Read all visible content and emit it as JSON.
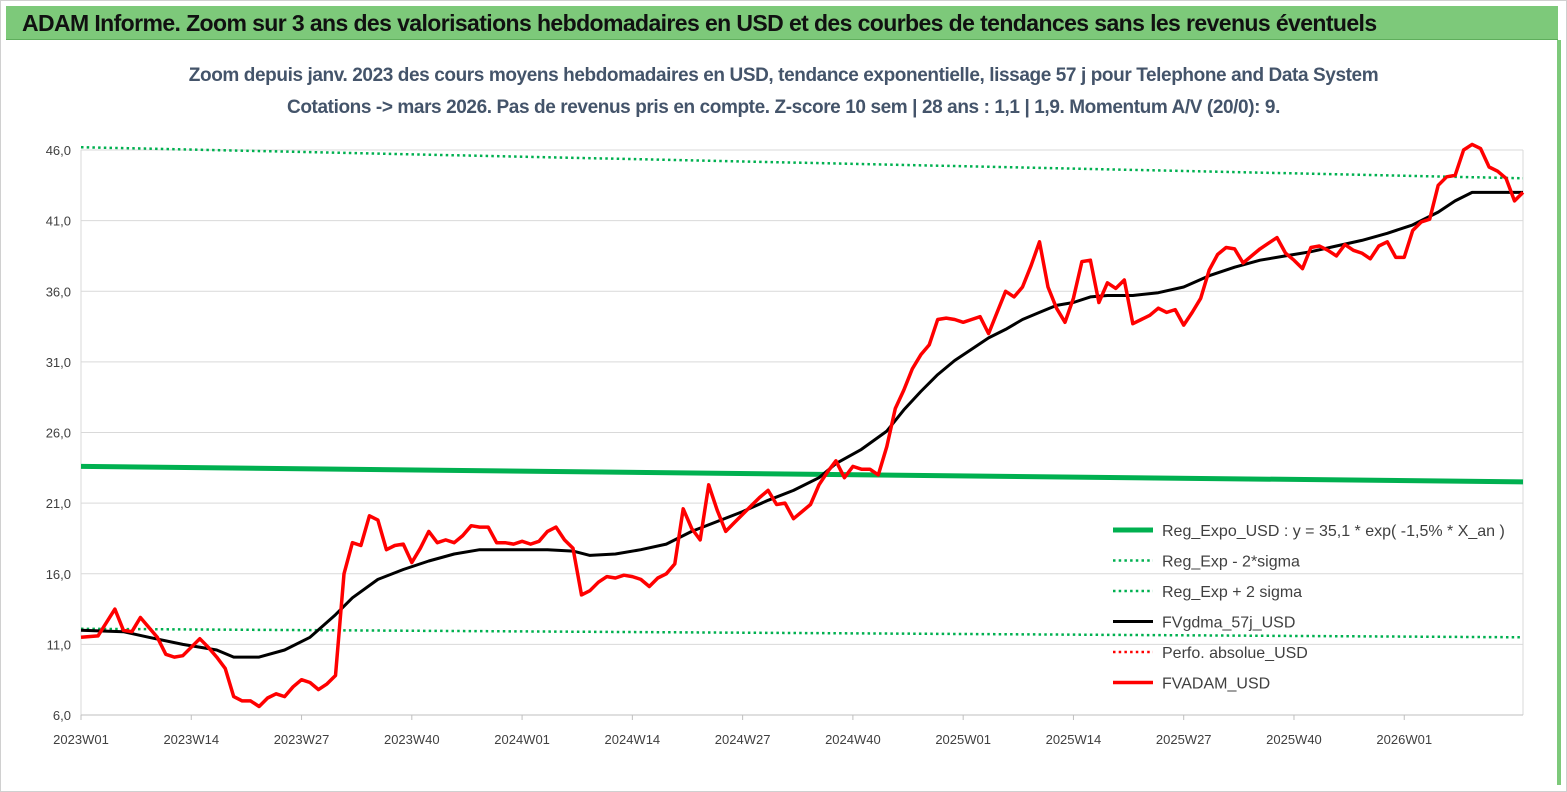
{
  "banner": {
    "title": "ADAM Informe. Zoom sur 3 ans des valorisations hebdomadaires en USD et des courbes de tendances sans les revenus éventuels",
    "background": "#7dc97a"
  },
  "chart_data": {
    "type": "line",
    "title": "Zoom depuis janv. 2023 des cours moyens hebdomadaires en USD, tendance exponentielle, lissage 57 j pour Telephone and Data System",
    "subtitle": "Cotations -> mars 2026. Pas de revenus pris en compte. Z-score 10 sem | 28 ans : 1,1 | 1,9. Momentum A/V (20/0): 9.",
    "xlabel": "",
    "ylabel": "",
    "x_ticks": [
      "2023W01",
      "2023W14",
      "2023W27",
      "2023W40",
      "2024W01",
      "2024W14",
      "2024W27",
      "2024W40",
      "2025W01",
      "2025W14",
      "2025W27",
      "2025W40",
      "2026W01"
    ],
    "x_range_weeks": [
      0,
      170
    ],
    "y_ticks": [
      "6,0",
      "11,0",
      "16,0",
      "21,0",
      "26,0",
      "31,0",
      "36,0",
      "41,0",
      "46,0"
    ],
    "ylim": [
      6,
      46
    ],
    "grid": "horizontal",
    "legend_position": "bottom-right",
    "series": [
      {
        "name": "Reg_Expo_USD : y = 35,1 * exp( -1,5% *  X_an )",
        "color": "#00b050",
        "style": "solid-thick",
        "points": [
          [
            0,
            23.6
          ],
          [
            170,
            22.5
          ]
        ]
      },
      {
        "name": "Reg_Exp - 2*sigma",
        "color": "#00b050",
        "style": "dotted",
        "points": [
          [
            0,
            12.1
          ],
          [
            170,
            11.5
          ]
        ]
      },
      {
        "name": "Reg_Exp + 2 sigma",
        "color": "#00b050",
        "style": "dotted",
        "points": [
          [
            0,
            46.2
          ],
          [
            170,
            44.0
          ]
        ]
      },
      {
        "name": "FVgdma_57j_USD",
        "color": "#000000",
        "style": "solid",
        "points": [
          [
            0,
            12
          ],
          [
            5,
            11.9
          ],
          [
            8,
            11.5
          ],
          [
            12,
            11
          ],
          [
            16,
            10.6
          ],
          [
            18,
            10.1
          ],
          [
            21,
            10.1
          ],
          [
            24,
            10.6
          ],
          [
            27,
            11.5
          ],
          [
            30,
            13.1
          ],
          [
            32,
            14.3
          ],
          [
            35,
            15.6
          ],
          [
            38,
            16.3
          ],
          [
            41,
            16.9
          ],
          [
            44,
            17.4
          ],
          [
            47,
            17.7
          ],
          [
            50,
            17.7
          ],
          [
            55,
            17.7
          ],
          [
            58,
            17.6
          ],
          [
            60,
            17.3
          ],
          [
            63,
            17.4
          ],
          [
            66,
            17.7
          ],
          [
            69,
            18.1
          ],
          [
            72,
            19
          ],
          [
            75,
            19.7
          ],
          [
            78,
            20.4
          ],
          [
            81,
            21.2
          ],
          [
            84,
            21.9
          ],
          [
            87,
            22.8
          ],
          [
            89,
            23.8
          ],
          [
            92,
            24.8
          ],
          [
            95,
            26.1
          ],
          [
            97,
            27.6
          ],
          [
            99,
            28.9
          ],
          [
            101,
            30.1
          ],
          [
            103,
            31.1
          ],
          [
            105,
            31.9
          ],
          [
            107,
            32.7
          ],
          [
            109,
            33.3
          ],
          [
            111,
            34
          ],
          [
            113,
            34.5
          ],
          [
            115,
            35
          ],
          [
            117,
            35.2
          ],
          [
            119,
            35.6
          ],
          [
            121,
            35.7
          ],
          [
            124,
            35.7
          ],
          [
            127,
            35.9
          ],
          [
            130,
            36.3
          ],
          [
            133,
            37.1
          ],
          [
            136,
            37.7
          ],
          [
            139,
            38.2
          ],
          [
            142,
            38.5
          ],
          [
            145,
            38.8
          ],
          [
            148,
            39.2
          ],
          [
            151,
            39.6
          ],
          [
            154,
            40.1
          ],
          [
            157,
            40.7
          ],
          [
            160,
            41.6
          ],
          [
            162,
            42.4
          ],
          [
            164,
            43
          ],
          [
            166,
            43
          ],
          [
            168,
            43
          ],
          [
            170,
            43
          ]
        ]
      },
      {
        "name": "Perfo. absolue_USD",
        "color": "#ff0000",
        "style": "dotted",
        "points": []
      },
      {
        "name": "FVADAM_USD",
        "color": "#ff0000",
        "style": "solid-thick",
        "points": [
          [
            0,
            11.5
          ],
          [
            2,
            11.6
          ],
          [
            4,
            13.5
          ],
          [
            5,
            12
          ],
          [
            6,
            11.9
          ],
          [
            7,
            12.9
          ],
          [
            9,
            11.5
          ],
          [
            10,
            10.3
          ],
          [
            11,
            10.1
          ],
          [
            12,
            10.2
          ],
          [
            13,
            10.8
          ],
          [
            14,
            11.4
          ],
          [
            15,
            10.8
          ],
          [
            16,
            10.1
          ],
          [
            17,
            9.3
          ],
          [
            18,
            7.3
          ],
          [
            19,
            7
          ],
          [
            20,
            7
          ],
          [
            21,
            6.6
          ],
          [
            22,
            7.2
          ],
          [
            23,
            7.5
          ],
          [
            24,
            7.3
          ],
          [
            25,
            8
          ],
          [
            26,
            8.5
          ],
          [
            27,
            8.3
          ],
          [
            28,
            7.8
          ],
          [
            29,
            8.2
          ],
          [
            30,
            8.8
          ],
          [
            31,
            16
          ],
          [
            32,
            18.2
          ],
          [
            33,
            18
          ],
          [
            34,
            20.1
          ],
          [
            35,
            19.8
          ],
          [
            36,
            17.7
          ],
          [
            37,
            18
          ],
          [
            38,
            18.1
          ],
          [
            39,
            16.8
          ],
          [
            40,
            17.8
          ],
          [
            41,
            19
          ],
          [
            42,
            18.2
          ],
          [
            43,
            18.4
          ],
          [
            44,
            18.2
          ],
          [
            45,
            18.7
          ],
          [
            46,
            19.4
          ],
          [
            47,
            19.3
          ],
          [
            48,
            19.3
          ],
          [
            49,
            18.2
          ],
          [
            50,
            18.2
          ],
          [
            51,
            18.1
          ],
          [
            52,
            18.3
          ],
          [
            53,
            18.1
          ],
          [
            54,
            18.3
          ],
          [
            55,
            19
          ],
          [
            56,
            19.3
          ],
          [
            57,
            18.4
          ],
          [
            58,
            17.8
          ],
          [
            59,
            14.5
          ],
          [
            60,
            14.8
          ],
          [
            61,
            15.4
          ],
          [
            62,
            15.8
          ],
          [
            63,
            15.7
          ],
          [
            64,
            15.9
          ],
          [
            65,
            15.8
          ],
          [
            66,
            15.6
          ],
          [
            67,
            15.1
          ],
          [
            68,
            15.7
          ],
          [
            69,
            16
          ],
          [
            70,
            16.7
          ],
          [
            71,
            20.6
          ],
          [
            72,
            19.2
          ],
          [
            73,
            18.4
          ],
          [
            74,
            22.3
          ],
          [
            75,
            20.5
          ],
          [
            76,
            19
          ],
          [
            77,
            19.6
          ],
          [
            78,
            20.2
          ],
          [
            79,
            20.8
          ],
          [
            80,
            21.4
          ],
          [
            81,
            21.9
          ],
          [
            82,
            20.9
          ],
          [
            83,
            21
          ],
          [
            84,
            19.9
          ],
          [
            85,
            20.4
          ],
          [
            86,
            20.9
          ],
          [
            87,
            22.3
          ],
          [
            88,
            23.2
          ],
          [
            89,
            24
          ],
          [
            90,
            22.8
          ],
          [
            91,
            23.6
          ],
          [
            92,
            23.4
          ],
          [
            93,
            23.4
          ],
          [
            94,
            23
          ],
          [
            95,
            25
          ],
          [
            96,
            27.7
          ],
          [
            97,
            29
          ],
          [
            98,
            30.5
          ],
          [
            99,
            31.5
          ],
          [
            100,
            32.2
          ],
          [
            101,
            34
          ],
          [
            102,
            34.1
          ],
          [
            103,
            34
          ],
          [
            104,
            33.8
          ],
          [
            105,
            34
          ],
          [
            106,
            34.2
          ],
          [
            107,
            33
          ],
          [
            108,
            34.5
          ],
          [
            109,
            36
          ],
          [
            110,
            35.6
          ],
          [
            111,
            36.3
          ],
          [
            112,
            37.8
          ],
          [
            113,
            39.5
          ],
          [
            114,
            36.3
          ],
          [
            115,
            34.8
          ],
          [
            116,
            33.8
          ],
          [
            117,
            35.5
          ],
          [
            118,
            38.1
          ],
          [
            119,
            38.2
          ],
          [
            120,
            35.2
          ],
          [
            121,
            36.6
          ],
          [
            122,
            36.2
          ],
          [
            123,
            36.8
          ],
          [
            124,
            33.7
          ],
          [
            125,
            34
          ],
          [
            126,
            34.3
          ],
          [
            127,
            34.8
          ],
          [
            128,
            34.5
          ],
          [
            129,
            34.7
          ],
          [
            130,
            33.6
          ],
          [
            131,
            34.5
          ],
          [
            132,
            35.5
          ],
          [
            133,
            37.5
          ],
          [
            134,
            38.6
          ],
          [
            135,
            39.1
          ],
          [
            136,
            39
          ],
          [
            137,
            38
          ],
          [
            138,
            38.5
          ],
          [
            139,
            39
          ],
          [
            140,
            39.4
          ],
          [
            141,
            39.8
          ],
          [
            142,
            38.7
          ],
          [
            143,
            38.2
          ],
          [
            144,
            37.6
          ],
          [
            145,
            39.1
          ],
          [
            146,
            39.2
          ],
          [
            147,
            38.9
          ],
          [
            148,
            38.5
          ],
          [
            149,
            39.3
          ],
          [
            150,
            38.9
          ],
          [
            151,
            38.7
          ],
          [
            152,
            38.3
          ],
          [
            153,
            39.2
          ],
          [
            154,
            39.5
          ],
          [
            155,
            38.4
          ],
          [
            156,
            38.4
          ],
          [
            157,
            40.3
          ],
          [
            158,
            40.9
          ],
          [
            159,
            41.1
          ],
          [
            160,
            43.5
          ],
          [
            161,
            44.1
          ],
          [
            162,
            44.2
          ],
          [
            163,
            46
          ],
          [
            164,
            46.4
          ],
          [
            165,
            46.1
          ],
          [
            166,
            44.8
          ],
          [
            167,
            44.5
          ],
          [
            168,
            44
          ],
          [
            169,
            42.4
          ],
          [
            170,
            43
          ]
        ]
      }
    ]
  }
}
